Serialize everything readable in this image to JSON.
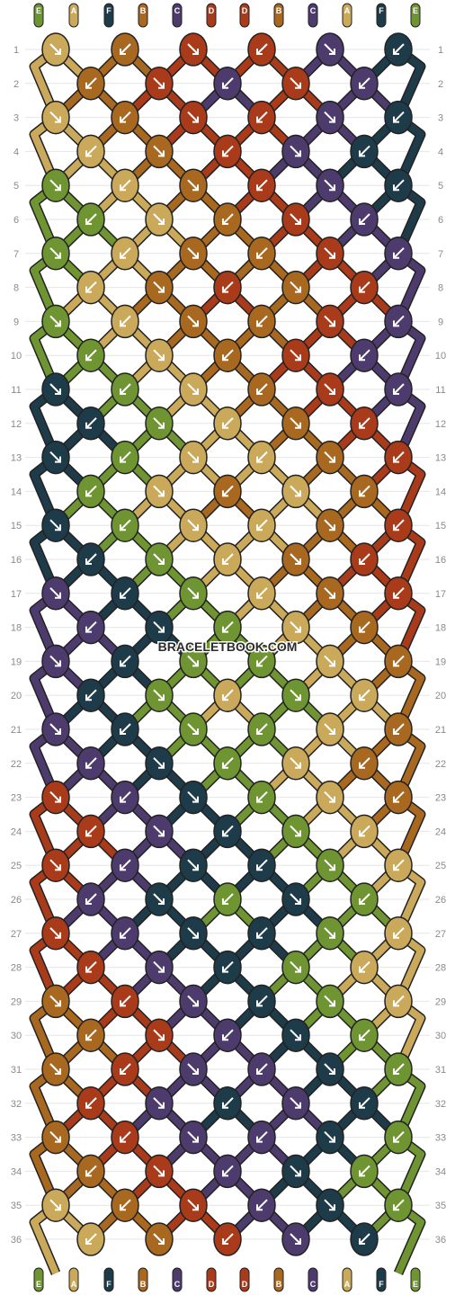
{
  "app": {
    "watermark": "BRACELETBOOK.COM"
  },
  "colors": {
    "A": "#cba95a",
    "B": "#a8681f",
    "C": "#4e3b6e",
    "D": "#a93a1a",
    "E": "#6f9432",
    "F": "#1e3b4a",
    "outline": "#222222",
    "arrow": "#ffffff"
  },
  "strands_top": [
    "E",
    "A",
    "F",
    "B",
    "C",
    "D",
    "D",
    "B",
    "C",
    "A",
    "F",
    "E"
  ],
  "strands_bottom": [
    "E",
    "A",
    "F",
    "B",
    "C",
    "D",
    "D",
    "B",
    "C",
    "A",
    "F",
    "E"
  ],
  "row_numbers": [
    "1",
    "2",
    "3",
    "4",
    "5",
    "6",
    "7",
    "8",
    "9",
    "10",
    "11",
    "12",
    "13",
    "14",
    "15",
    "16",
    "17",
    "18",
    "19",
    "20",
    "21",
    "22",
    "23",
    "24",
    "25",
    "26",
    "27",
    "28",
    "29",
    "30",
    "31",
    "32",
    "33",
    "34",
    "35",
    "36"
  ],
  "knot_rows": [
    [
      "A",
      "B",
      "D",
      "D",
      "C",
      "F"
    ],
    [
      "B",
      "D",
      "C",
      "D",
      "C"
    ],
    [
      "A",
      "B",
      "D",
      "D",
      "C",
      "F"
    ],
    [
      "A",
      "B",
      "D",
      "C",
      "F"
    ],
    [
      "E",
      "A",
      "B",
      "D",
      "C",
      "F"
    ],
    [
      "E",
      "A",
      "B",
      "D",
      "C"
    ],
    [
      "E",
      "A",
      "B",
      "B",
      "D",
      "C"
    ],
    [
      "A",
      "B",
      "D",
      "B",
      "D"
    ],
    [
      "E",
      "A",
      "B",
      "B",
      "D",
      "C"
    ],
    [
      "E",
      "A",
      "B",
      "D",
      "C"
    ],
    [
      "F",
      "E",
      "A",
      "B",
      "D",
      "C"
    ],
    [
      "F",
      "E",
      "A",
      "B",
      "D"
    ],
    [
      "F",
      "E",
      "A",
      "A",
      "B",
      "D"
    ],
    [
      "E",
      "A",
      "B",
      "A",
      "B"
    ],
    [
      "F",
      "E",
      "A",
      "A",
      "B",
      "D"
    ],
    [
      "F",
      "E",
      "A",
      "B",
      "D"
    ],
    [
      "C",
      "F",
      "E",
      "A",
      "B",
      "D"
    ],
    [
      "C",
      "F",
      "E",
      "A",
      "B"
    ],
    [
      "C",
      "F",
      "E",
      "E",
      "A",
      "B"
    ],
    [
      "F",
      "E",
      "A",
      "E",
      "A"
    ],
    [
      "C",
      "F",
      "E",
      "E",
      "A",
      "B"
    ],
    [
      "C",
      "F",
      "E",
      "A",
      "B"
    ],
    [
      "D",
      "C",
      "F",
      "E",
      "A",
      "B"
    ],
    [
      "D",
      "C",
      "F",
      "E",
      "A"
    ],
    [
      "D",
      "C",
      "F",
      "F",
      "E",
      "A"
    ],
    [
      "C",
      "F",
      "E",
      "F",
      "E"
    ],
    [
      "D",
      "C",
      "F",
      "F",
      "E",
      "A"
    ],
    [
      "D",
      "C",
      "F",
      "E",
      "A"
    ],
    [
      "B",
      "D",
      "C",
      "F",
      "E",
      "A"
    ],
    [
      "B",
      "D",
      "C",
      "F",
      "E"
    ],
    [
      "B",
      "D",
      "C",
      "C",
      "F",
      "E"
    ],
    [
      "D",
      "C",
      "F",
      "C",
      "F"
    ],
    [
      "B",
      "D",
      "C",
      "C",
      "F",
      "E"
    ],
    [
      "B",
      "D",
      "C",
      "F",
      "E"
    ],
    [
      "A",
      "B",
      "D",
      "C",
      "F",
      "E"
    ],
    [
      "A",
      "B",
      "D",
      "C",
      "F"
    ]
  ]
}
